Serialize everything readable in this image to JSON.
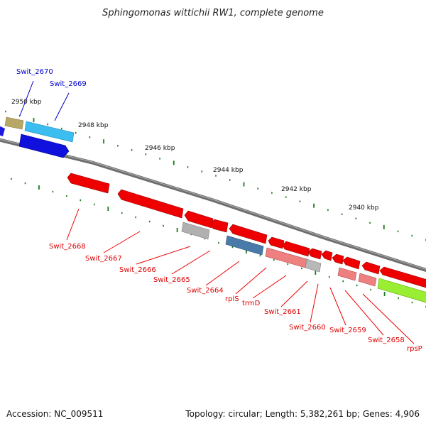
{
  "title": "Sphingomonas wittichii RW1, complete genome",
  "accession": "Accession: NC_009511",
  "summary": "Topology: circular; Length: 5,382,261 bp; Genes: 4,906",
  "colors": {
    "backbone": "#7a7a7a",
    "tick": "#1a7a1a",
    "forward_label": "#0000cc",
    "reverse_label": "#dd0000",
    "gene_red": "#ee0000",
    "gene_pink": "#ee8080",
    "gene_gray": "#b0b0b0",
    "gene_steel": "#4a7aaa",
    "gene_lime": "#99ee33",
    "gene_blue": "#1010dd",
    "gene_cyan": "#33bbee",
    "gene_olive": "#bbaa66"
  },
  "kbp_labels": [
    "2950 kbp",
    "2948 kbp",
    "2946 kbp",
    "2944 kbp",
    "2942 kbp",
    "2940 kbp"
  ],
  "genes": {
    "swit_2670": "Swit_2670",
    "swit_2669": "Swit_2669",
    "swit_2668": "Swit_2668",
    "swit_2667": "Swit_2667",
    "swit_2666": "Swit_2666",
    "swit_2665": "Swit_2665",
    "swit_2664": "Swit_2664",
    "rplS": "rplS",
    "trmD": "trmD",
    "swit_2661": "Swit_2661",
    "swit_2660": "Swit_2660",
    "swit_2659": "Swit_2659",
    "swit_2658": "Swit_2658",
    "rpsP": "rpsP"
  }
}
